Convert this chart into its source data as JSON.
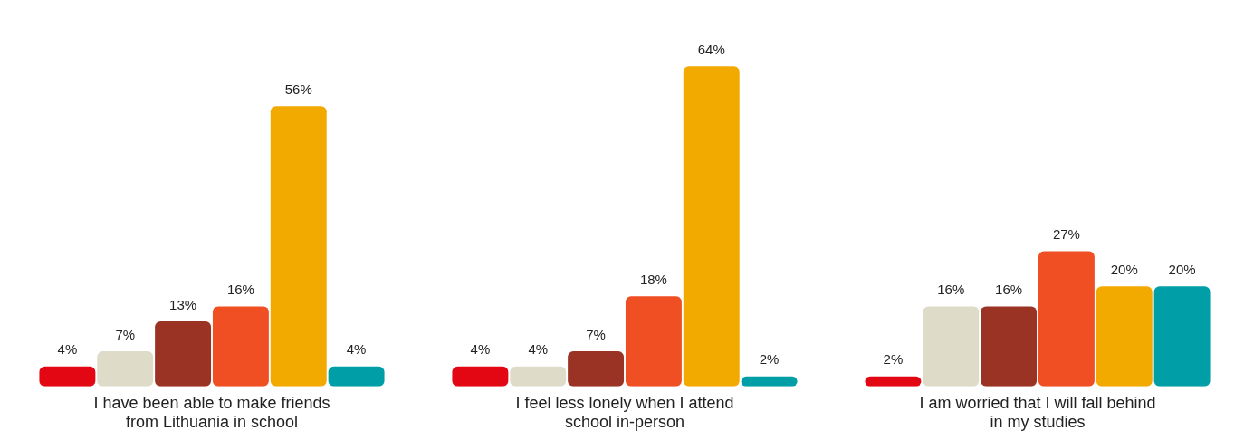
{
  "chart_data": {
    "type": "bar",
    "categories": [
      "I have been able to make friends from Lithuania in school",
      "I feel less lonely when I attend school in-person",
      "I am worried that I will fall behind in my studies"
    ],
    "series": [
      {
        "color": "#e30613",
        "values": [
          4,
          4,
          2
        ],
        "value_labels": [
          "4%",
          "4%",
          "2%"
        ]
      },
      {
        "color": "#dedbc8",
        "values": [
          7,
          4,
          16
        ],
        "value_labels": [
          "7%",
          "4%",
          "16%"
        ]
      },
      {
        "color": "#9b3324",
        "values": [
          13,
          7,
          16
        ],
        "value_labels": [
          "13%",
          "7%",
          "16%"
        ]
      },
      {
        "color": "#f04e23",
        "values": [
          16,
          18,
          27
        ],
        "value_labels": [
          "16%",
          "18%",
          "27%"
        ]
      },
      {
        "color": "#f2a900",
        "values": [
          56,
          64,
          20
        ],
        "value_labels": [
          "56%",
          "64%",
          "20%"
        ]
      },
      {
        "color": "#009fa8",
        "values": [
          4,
          2,
          20
        ],
        "value_labels": [
          "4%",
          "2%",
          "20%"
        ]
      }
    ],
    "grid": false,
    "legend": false
  }
}
